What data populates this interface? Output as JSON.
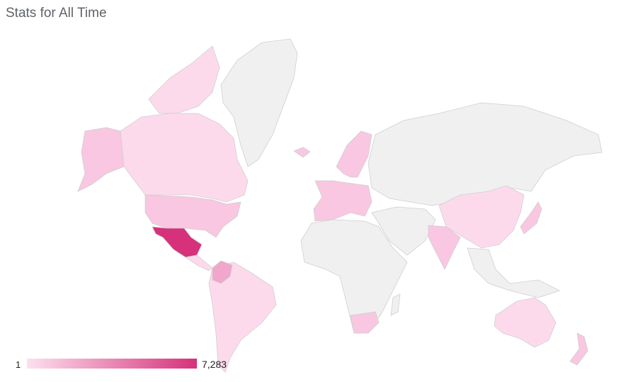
{
  "title": "Stats for All Time",
  "legend": {
    "min_label": "1",
    "max_label": "7,283",
    "min_color": "#fde0ef",
    "max_color": "#d6317a"
  },
  "colors": {
    "no_data": "#f0f0f0",
    "border": "#cfcfcf",
    "light": "#fcdaec",
    "mid": "#f9c7e1",
    "medium": "#f1a6cc",
    "dark": "#d6317a"
  },
  "regions": [
    {
      "name": "Greenland",
      "shade": "no_data"
    },
    {
      "name": "Canada",
      "shade": "light"
    },
    {
      "name": "Alaska (United States)",
      "shade": "mid"
    },
    {
      "name": "United States",
      "shade": "mid"
    },
    {
      "name": "Mexico",
      "shade": "dark"
    },
    {
      "name": "Central America",
      "shade": "light"
    },
    {
      "name": "South America",
      "shade": "light"
    },
    {
      "name": "Colombia",
      "shade": "medium"
    },
    {
      "name": "Scandinavia",
      "shade": "mid"
    },
    {
      "name": "Western Europe",
      "shade": "mid"
    },
    {
      "name": "Russia and Central Asia",
      "shade": "no_data"
    },
    {
      "name": "Middle East",
      "shade": "no_data"
    },
    {
      "name": "Africa",
      "shade": "no_data"
    },
    {
      "name": "South Africa",
      "shade": "mid"
    },
    {
      "name": "China",
      "shade": "light"
    },
    {
      "name": "India",
      "shade": "mid"
    },
    {
      "name": "Japan",
      "shade": "mid"
    },
    {
      "name": "Southeast Asia",
      "shade": "no_data"
    },
    {
      "name": "Australia",
      "shade": "light"
    },
    {
      "name": "New Zealand",
      "shade": "mid"
    },
    {
      "name": "Iceland",
      "shade": "mid"
    }
  ]
}
